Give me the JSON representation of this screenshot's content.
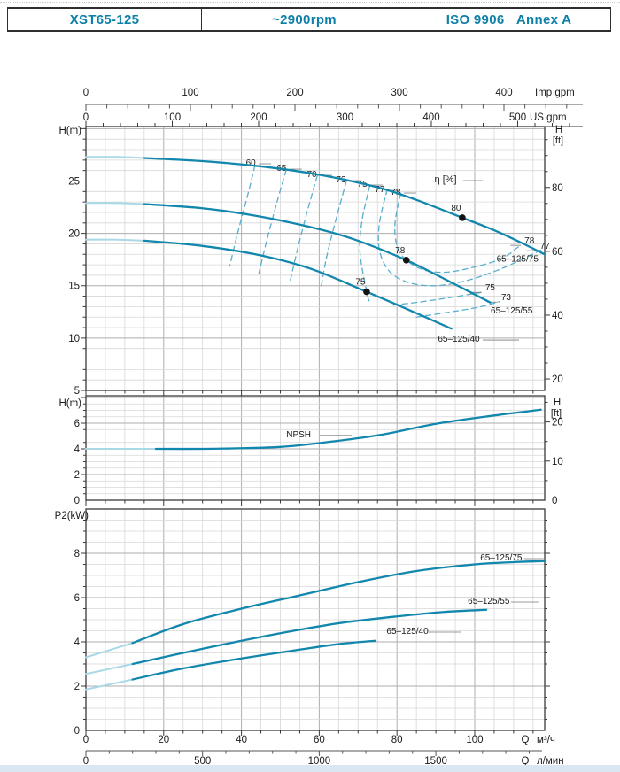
{
  "header": {
    "model": "XST65-125",
    "speed": "~2900rpm",
    "standard": "ISO 9906   Annex A"
  },
  "colors": {
    "brand": "#0d80a9",
    "curve": "#1287ad",
    "curve_light": "#a9d8e6",
    "dash": "#58aecd",
    "grid": "#d7d7d7",
    "grid_major": "#aeaeae",
    "frame": "#3a3a3a",
    "text": "#1a1a1a",
    "marker": "#111111"
  },
  "axis_text": {
    "imp_unit": "Imp gpm",
    "us_unit": "US gpm",
    "q": "Q",
    "m3h_unit": "м³/ч",
    "lmin_unit": "л/мин",
    "head_m": "H(m)",
    "head_ft_1": "H",
    "head_ft_2": "[ft]",
    "p2_label": "P2(kW)"
  },
  "flow_scales": {
    "imp_labels": [
      0,
      100,
      200,
      300,
      400
    ],
    "us_labels": [
      0,
      100,
      200,
      300,
      400,
      500
    ],
    "m3h_labels": [
      0,
      20,
      40,
      60,
      80,
      100
    ],
    "lmin_labels": [
      0,
      500,
      1000,
      1500
    ]
  },
  "chart_data": [
    {
      "id": "main",
      "type": "line",
      "title": "H-Q performance curves",
      "xlabel": "Q (m3/h)",
      "ylabel": "H(m)",
      "y2label": "H [ft]",
      "xlim": [
        0,
        118
      ],
      "ylim": [
        5,
        30.2
      ],
      "left_ticks": [
        5,
        10,
        15,
        20,
        25
      ],
      "right_ticks_ft": [
        20,
        40,
        60,
        80
      ],
      "eta_title": {
        "text": "η [%]",
        "at": [
          92.5,
          25.12
        ]
      },
      "series": [
        {
          "name": "65–125/75",
          "label_at": [
            111,
            17.55
          ],
          "solid_from": 15,
          "points": [
            [
              0,
              27.3
            ],
            [
              8,
              27.3
            ],
            [
              15,
              27.2
            ],
            [
              30,
              26.9
            ],
            [
              45,
              26.4
            ],
            [
              60,
              25.6
            ],
            [
              75,
              24.4
            ],
            [
              85,
              23.2
            ],
            [
              96.8,
              21.5
            ],
            [
              105,
              20.3
            ],
            [
              112,
              19.1
            ],
            [
              118,
              18.0
            ]
          ]
        },
        {
          "name": "65–125/55",
          "label_at": [
            109.5,
            12.6
          ],
          "solid_from": 15,
          "points": [
            [
              0,
              22.9
            ],
            [
              8,
              22.9
            ],
            [
              15,
              22.8
            ],
            [
              30,
              22.4
            ],
            [
              45,
              21.6
            ],
            [
              60,
              20.4
            ],
            [
              70,
              19.3
            ],
            [
              82.4,
              17.45
            ],
            [
              93,
              15.5
            ],
            [
              104,
              13.4
            ]
          ]
        },
        {
          "name": "65–125/40",
          "label_at": [
            95.9,
            9.9
          ],
          "leader": [
            27,
            68
          ],
          "solid_from": 15,
          "points": [
            [
              0,
              19.4
            ],
            [
              8,
              19.4
            ],
            [
              15,
              19.3
            ],
            [
              30,
              18.8
            ],
            [
              45,
              17.9
            ],
            [
              58,
              16.6
            ],
            [
              72.2,
              14.42
            ],
            [
              83,
              12.7
            ],
            [
              94,
              10.9
            ]
          ]
        }
      ],
      "markers": [
        {
          "label": "80",
          "at": [
            96.8,
            21.5
          ]
        },
        {
          "label": "78",
          "at": [
            82.4,
            17.45
          ]
        },
        {
          "label": "75",
          "at": [
            72.2,
            14.42
          ]
        }
      ],
      "eta_lines": [
        {
          "label": "60",
          "side": "t",
          "label_at": [
            42.4,
            26.73
          ],
          "points": [
            [
              43.5,
              26.5
            ],
            [
              41.5,
              23.5
            ],
            [
              39,
              20.0
            ],
            [
              37,
              16.9
            ]
          ]
        },
        {
          "label": "65",
          "side": "t",
          "label_at": [
            50.3,
            26.22
          ],
          "points": [
            [
              51.5,
              26.05
            ],
            [
              49,
              22.8
            ],
            [
              46.5,
              19.3
            ],
            [
              44.5,
              16.2
            ]
          ]
        },
        {
          "label": "70",
          "side": "t",
          "label_at": [
            58.1,
            25.63
          ],
          "points": [
            [
              59.5,
              25.5
            ],
            [
              57,
              22.2
            ],
            [
              54.5,
              18.6
            ],
            [
              52.5,
              15.4
            ]
          ]
        },
        {
          "label": "73",
          "side": "t",
          "label_at": [
            65.6,
            25.12
          ],
          "points": [
            [
              67,
              25.0
            ],
            [
              64.5,
              21.6
            ],
            [
              62,
              17.9
            ],
            [
              60.5,
              14.9
            ]
          ]
        },
        {
          "label": "75",
          "side": "t",
          "label_at": [
            71.1,
            24.7
          ],
          "points": [
            [
              73,
              24.55
            ],
            [
              71,
              21.2
            ],
            [
              70.5,
              18.2
            ],
            [
              72.2,
              14.42
            ],
            [
              73,
              13.4
            ]
          ]
        },
        {
          "label": "77",
          "side": "t",
          "label_at": [
            75.6,
            24.19
          ],
          "points": [
            [
              77.5,
              24.2
            ],
            [
              75.5,
              21.0
            ],
            [
              75.5,
              18.4
            ],
            [
              78,
              16.4
            ],
            [
              83,
              15.3
            ],
            [
              90,
              15.0
            ],
            [
              98,
              15.5
            ],
            [
              106,
              16.5
            ],
            [
              112,
              17.5
            ],
            [
              117.5,
              18.5
            ]
          ]
        },
        {
          "label": "78",
          "side": "t",
          "label_at": [
            79.7,
            23.94
          ],
          "points": [
            [
              81,
              23.85
            ],
            [
              79.5,
              21.0
            ],
            [
              80,
              18.8
            ],
            [
              82.4,
              17.45
            ],
            [
              87,
              16.5
            ],
            [
              93,
              16.3
            ],
            [
              100,
              16.8
            ],
            [
              107,
              17.6
            ],
            [
              111.5,
              18.8
            ]
          ]
        },
        {
          "label": "78",
          "side": "r",
          "label_at": [
            112.8,
            19.28
          ],
          "points": []
        },
        {
          "label": "77",
          "side": "r",
          "label_at": [
            116.8,
            18.77
          ],
          "points": []
        },
        {
          "label": "75",
          "side": "r",
          "label_at": [
            102.7,
            14.79
          ],
          "points": [
            [
              79,
              13.15
            ],
            [
              87,
              13.5
            ],
            [
              95,
              13.95
            ],
            [
              101.5,
              14.35
            ]
          ]
        },
        {
          "label": "73",
          "side": "r",
          "label_at": [
            106.8,
            13.86
          ],
          "points": [
            [
              85,
              12.0
            ],
            [
              93,
              12.45
            ],
            [
              101,
              12.95
            ],
            [
              106.5,
              13.5
            ]
          ]
        }
      ]
    },
    {
      "id": "npsh",
      "type": "line",
      "title": "NPSH curve",
      "ylabel": "H(m)",
      "y2label": "H [ft]",
      "xlim": [
        0,
        118
      ],
      "ylim": [
        0,
        8.14
      ],
      "left_ticks": [
        0,
        2,
        4,
        6
      ],
      "right_ticks_ft": [
        0,
        10,
        20
      ],
      "series": [
        {
          "name": "NPSH",
          "label_at": [
            54.7,
            5.12
          ],
          "leader": [
            24,
            60
          ],
          "solid_from": 18,
          "points": [
            [
              0,
              4.0
            ],
            [
              18,
              4.0
            ],
            [
              30,
              4.0
            ],
            [
              40,
              4.05
            ],
            [
              50,
              4.15
            ],
            [
              60,
              4.45
            ],
            [
              75,
              5.05
            ],
            [
              90,
              5.95
            ],
            [
              105,
              6.6
            ],
            [
              117,
              7.05
            ]
          ]
        }
      ]
    },
    {
      "id": "p2",
      "type": "line",
      "title": "P2 power curves",
      "ylabel": "P2(kW)",
      "xlim": [
        0,
        118
      ],
      "ylim": [
        0,
        10
      ],
      "left_ticks": [
        0,
        2,
        4,
        6,
        8
      ],
      "series": [
        {
          "name": "65–125/75",
          "label_at": [
            106.8,
            7.8
          ],
          "leader": [
            26,
            48
          ],
          "solid_from": 12,
          "points": [
            [
              0,
              3.3
            ],
            [
              12,
              3.95
            ],
            [
              25,
              4.8
            ],
            [
              40,
              5.5
            ],
            [
              55,
              6.1
            ],
            [
              70,
              6.7
            ],
            [
              85,
              7.2
            ],
            [
              100,
              7.5
            ],
            [
              110,
              7.6
            ],
            [
              118,
              7.65
            ]
          ]
        },
        {
          "name": "65–125/55",
          "label_at": [
            103.6,
            5.84
          ],
          "leader": [
            25,
            56
          ],
          "solid_from": 12,
          "points": [
            [
              0,
              2.55
            ],
            [
              12,
              3.0
            ],
            [
              25,
              3.5
            ],
            [
              40,
              4.05
            ],
            [
              55,
              4.55
            ],
            [
              66.6,
              4.88
            ],
            [
              80,
              5.15
            ],
            [
              92,
              5.35
            ],
            [
              103,
              5.45
            ]
          ]
        },
        {
          "name": "65–125/40",
          "label_at": [
            82.7,
            4.48
          ],
          "leader": [
            22,
            60
          ],
          "solid_from": 12,
          "points": [
            [
              0,
              1.85
            ],
            [
              12,
              2.3
            ],
            [
              25,
              2.8
            ],
            [
              40,
              3.25
            ],
            [
              55,
              3.65
            ],
            [
              65,
              3.9
            ],
            [
              74.5,
              4.05
            ]
          ]
        }
      ]
    }
  ]
}
